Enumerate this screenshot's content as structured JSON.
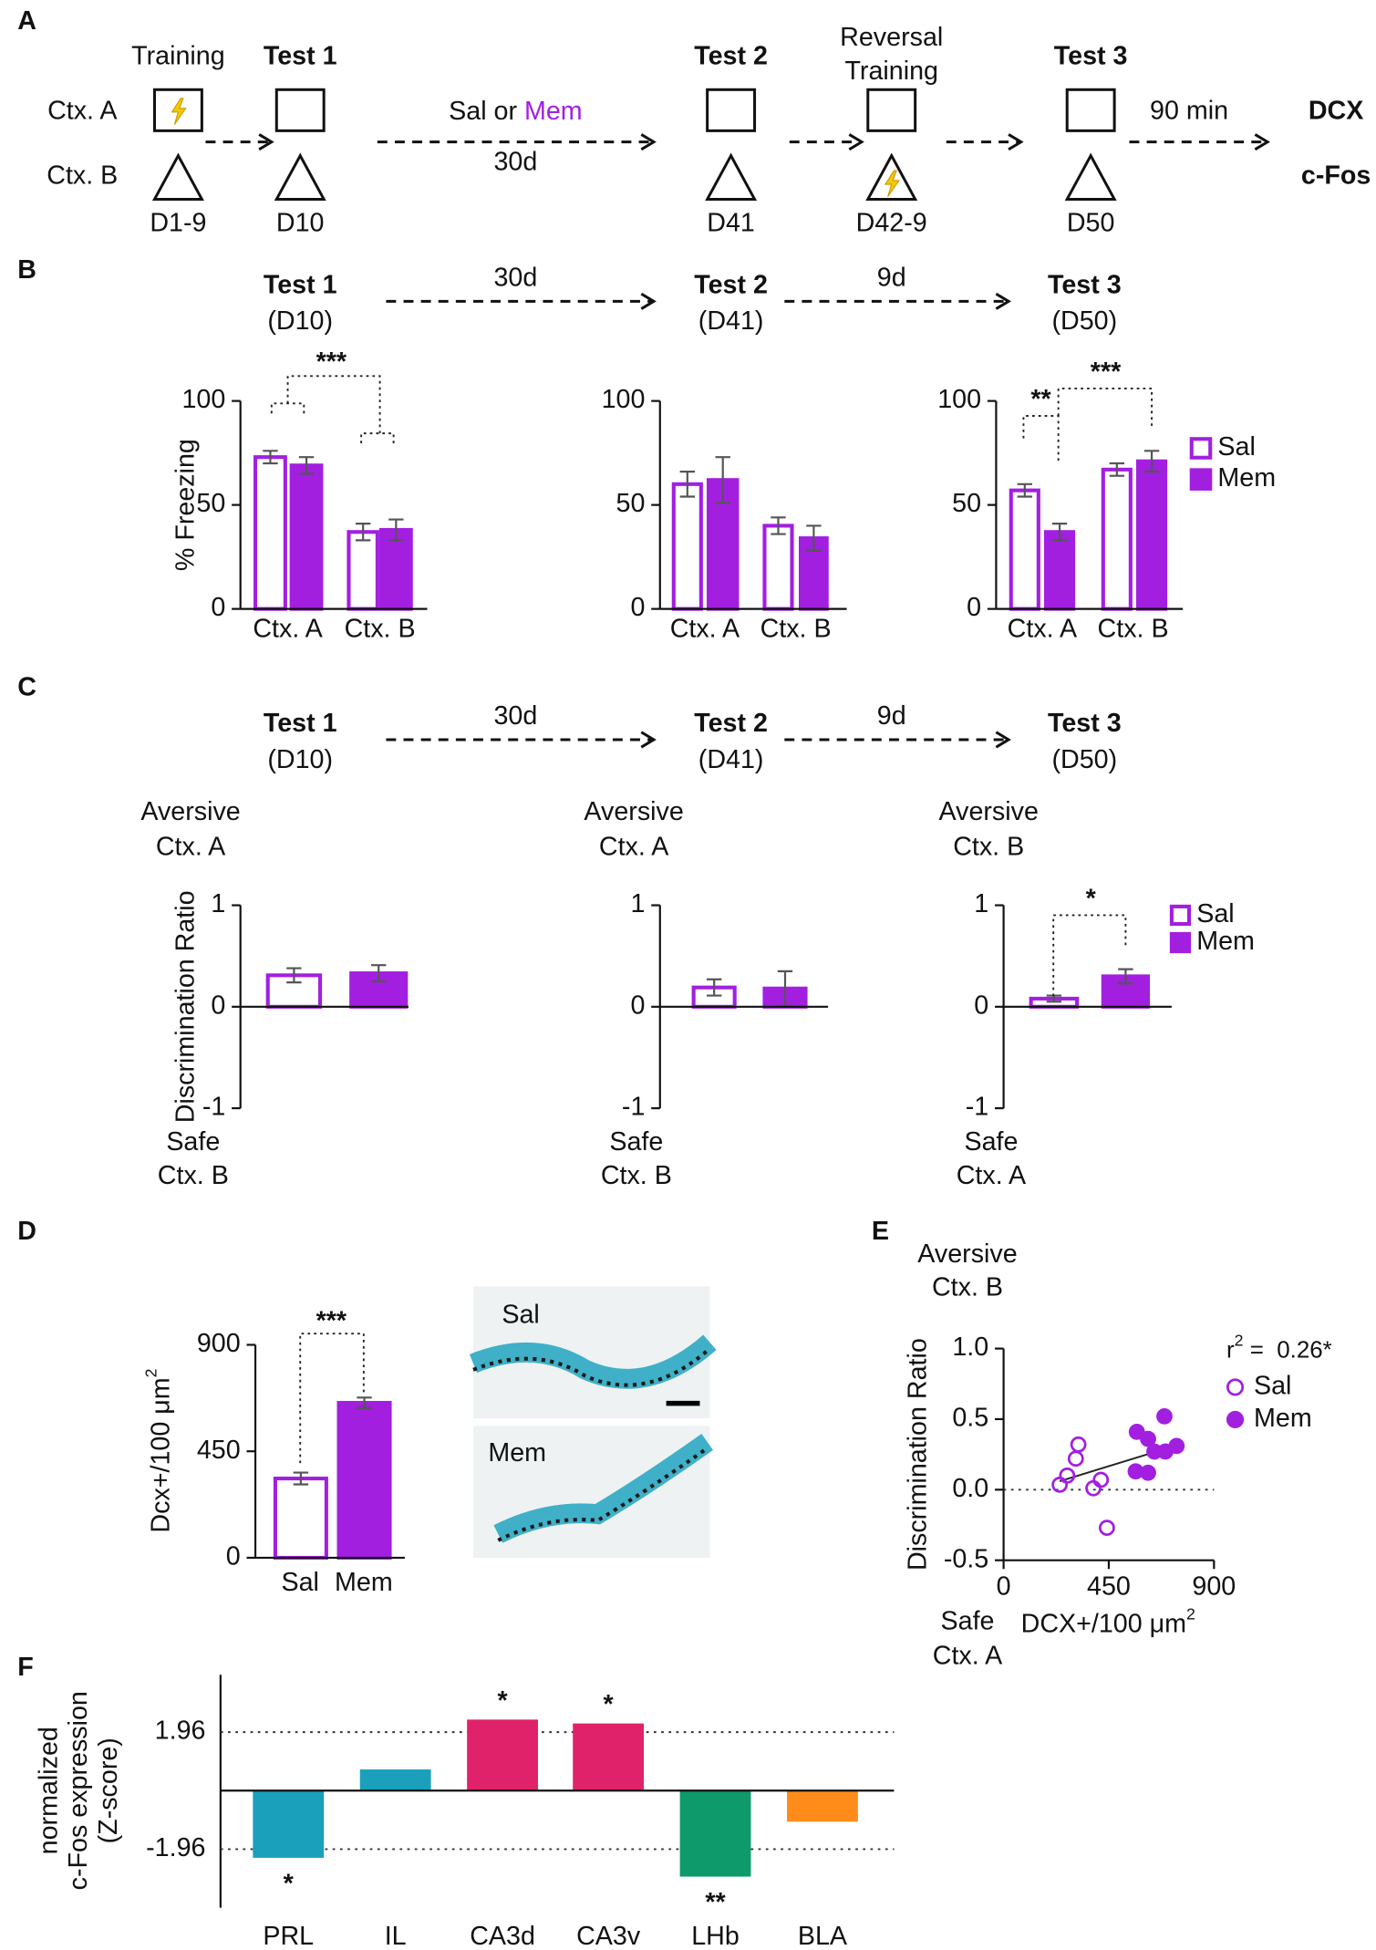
{
  "panel_labels": [
    "A",
    "B",
    "C",
    "D",
    "E",
    "F"
  ],
  "timeline": {
    "contexts": [
      "Ctx. A",
      "Ctx. B"
    ],
    "stages": [
      {
        "label": "Training",
        "day": "D1-9"
      },
      {
        "label": "Test 1",
        "day": "D10"
      },
      {
        "label": "Test 2",
        "day": "D41"
      },
      {
        "label": [
          "Reversal",
          "Training"
        ],
        "day": "D42-9"
      },
      {
        "label": "Test 3",
        "day": "D50"
      }
    ],
    "treatment": [
      "Sal or ",
      "Mem"
    ],
    "treatment_duration": "30d",
    "delay": "90 min",
    "readouts": [
      "DCX",
      "c-Fos"
    ]
  },
  "headers": [
    {
      "tests": [
        {
          "title": "Test 1",
          "day": "(D10)"
        },
        {
          "title": "Test 2",
          "day": "(D41)"
        },
        {
          "title": "Test 3",
          "day": "(D50)"
        }
      ],
      "intervals": [
        "30d",
        "9d"
      ]
    },
    {
      "tests": [
        {
          "title": "Test 1",
          "day": "(D10)"
        },
        {
          "title": "Test 2",
          "day": "(D41)"
        },
        {
          "title": "Test 3",
          "day": "(D50)"
        }
      ],
      "intervals": [
        "30d",
        "9d"
      ]
    }
  ],
  "chart_data": [
    {
      "type": "bar",
      "ylabel": "% Freezing",
      "categories": [
        "Ctx. A",
        "Ctx. B"
      ],
      "series": [
        {
          "color": "#a21fe0",
          "filled": false,
          "values": [
            73,
            37
          ],
          "errors": [
            3,
            4
          ]
        },
        {
          "color": "#a21fe0",
          "filled": true,
          "values": [
            69,
            38
          ],
          "errors": [
            4,
            5
          ]
        }
      ],
      "ylim": [
        0,
        100
      ],
      "yticks": [
        0,
        50,
        100
      ],
      "significance": [
        "***"
      ]
    },
    {
      "type": "bar",
      "categories": [
        "Ctx. A",
        "Ctx. B"
      ],
      "series": [
        {
          "color": "#a21fe0",
          "filled": false,
          "values": [
            60,
            40
          ],
          "errors": [
            6,
            4
          ]
        },
        {
          "color": "#a21fe0",
          "filled": true,
          "values": [
            62,
            34
          ],
          "errors": [
            11,
            6
          ]
        }
      ],
      "ylim": [
        0,
        100
      ],
      "yticks": [
        0,
        50,
        100
      ]
    },
    {
      "type": "bar",
      "categories": [
        "Ctx. A",
        "Ctx. B"
      ],
      "series": [
        {
          "name": "Sal",
          "color": "#a21fe0",
          "filled": false,
          "values": [
            57,
            67
          ],
          "errors": [
            3,
            3
          ]
        },
        {
          "name": "Mem",
          "color": "#a21fe0",
          "filled": true,
          "values": [
            37,
            71
          ],
          "errors": [
            4,
            5
          ]
        }
      ],
      "ylim": [
        0,
        100
      ],
      "yticks": [
        0,
        50,
        100
      ],
      "significance": [
        "**",
        "***"
      ],
      "legend": "right"
    },
    {
      "type": "bar",
      "ylabel": "Discrimination Ratio",
      "aversive": [
        "Aversive",
        "Ctx. A"
      ],
      "safe": [
        "Safe",
        "Ctx. B"
      ],
      "series": [
        {
          "color": "#a21fe0",
          "filled": false,
          "values": [
            0.31
          ],
          "errors": [
            0.07
          ]
        },
        {
          "color": "#a21fe0",
          "filled": true,
          "values": [
            0.33
          ],
          "errors": [
            0.08
          ]
        }
      ],
      "ylim": [
        -1,
        1
      ],
      "yticks": [
        -1,
        0,
        1
      ]
    },
    {
      "type": "bar",
      "aversive": [
        "Aversive",
        "Ctx. A"
      ],
      "safe": [
        "Safe",
        "Ctx. B"
      ],
      "series": [
        {
          "color": "#a21fe0",
          "filled": false,
          "values": [
            0.19
          ],
          "errors": [
            0.08
          ]
        },
        {
          "color": "#a21fe0",
          "filled": true,
          "values": [
            0.18
          ],
          "errors": [
            0.17
          ]
        }
      ],
      "ylim": [
        -1,
        1
      ],
      "yticks": [
        -1,
        0,
        1
      ]
    },
    {
      "type": "bar",
      "aversive": [
        "Aversive",
        "Ctx. B"
      ],
      "safe": [
        "Safe",
        "Ctx. A"
      ],
      "series": [
        {
          "name": "Sal",
          "color": "#a21fe0",
          "filled": false,
          "values": [
            0.08
          ],
          "errors": [
            0.03
          ]
        },
        {
          "name": "Mem",
          "color": "#a21fe0",
          "filled": true,
          "values": [
            0.3
          ],
          "errors": [
            0.07
          ]
        }
      ],
      "ylim": [
        -1,
        1
      ],
      "yticks": [
        -1,
        0,
        1
      ],
      "significance": [
        "*"
      ],
      "legend": "right"
    },
    {
      "type": "bar",
      "ylabel": [
        "Dcx+/100 μm",
        "2"
      ],
      "categories": [
        "Sal",
        "Mem"
      ],
      "values": [
        335,
        655
      ],
      "errors": [
        25,
        22
      ],
      "color": "#a21fe0",
      "filled": [
        false,
        true
      ],
      "ylim": [
        0,
        900
      ],
      "yticks": [
        0,
        450,
        900
      ],
      "significance": [
        "***"
      ],
      "micrographs": [
        "Sal",
        "Mem"
      ]
    },
    {
      "type": "scatter",
      "aversive": [
        "Aversive",
        "Ctx. B"
      ],
      "safe": [
        "Safe",
        "Ctx. A"
      ],
      "ylabel": "Discrimination Ratio",
      "xlabel": [
        "DCX+/100 μm",
        "2"
      ],
      "annotation": [
        "r",
        "2",
        " =  0.26*"
      ],
      "series": [
        {
          "name": "Sal",
          "color": "#a21fe0",
          "filled": false,
          "x": [
            240,
            272,
            309,
            320,
            384,
            416,
            442
          ],
          "y": [
            0.035,
            0.1,
            0.22,
            0.32,
            0.01,
            0.07,
            -0.27
          ]
        },
        {
          "name": "Mem",
          "color": "#a21fe0",
          "filled": true,
          "x": [
            570,
            618,
            565,
            618,
            645,
            692,
            688,
            740
          ],
          "y": [
            0.41,
            0.36,
            0.13,
            0.12,
            0.27,
            0.27,
            0.52,
            0.31
          ]
        }
      ],
      "fit": {
        "x": [
          240,
          751
        ],
        "y": [
          0.06,
          0.32
        ]
      },
      "xlim": [
        0,
        900
      ],
      "xticks": [
        0,
        450,
        900
      ],
      "ylim": [
        -0.5,
        1.0
      ],
      "yticks": [
        {
          "value": 1,
          "label": "1.0"
        },
        0.5,
        {
          "value": 0,
          "label": "0.0"
        },
        -0.5
      ]
    },
    {
      "type": "bar",
      "ylabel": [
        "normalized",
        "c-Fos expression",
        "(Z-score)"
      ],
      "categories": [
        "PRL",
        "IL",
        "CA3d",
        "CA3v",
        "LHb",
        "BLA"
      ],
      "values": [
        -2.25,
        0.71,
        2.38,
        2.25,
        -2.88,
        -1.04
      ],
      "colors": [
        "#1aa0bb",
        "#1aa0bb",
        "#e0226a",
        "#e0226a",
        "#0e9a6a",
        "#ff8c1a"
      ],
      "significance": [
        "*",
        null,
        "*",
        "*",
        "**",
        null
      ],
      "ylim": [
        -3.92,
        3.88
      ],
      "yticks": [
        1.96,
        -1.96
      ]
    }
  ]
}
